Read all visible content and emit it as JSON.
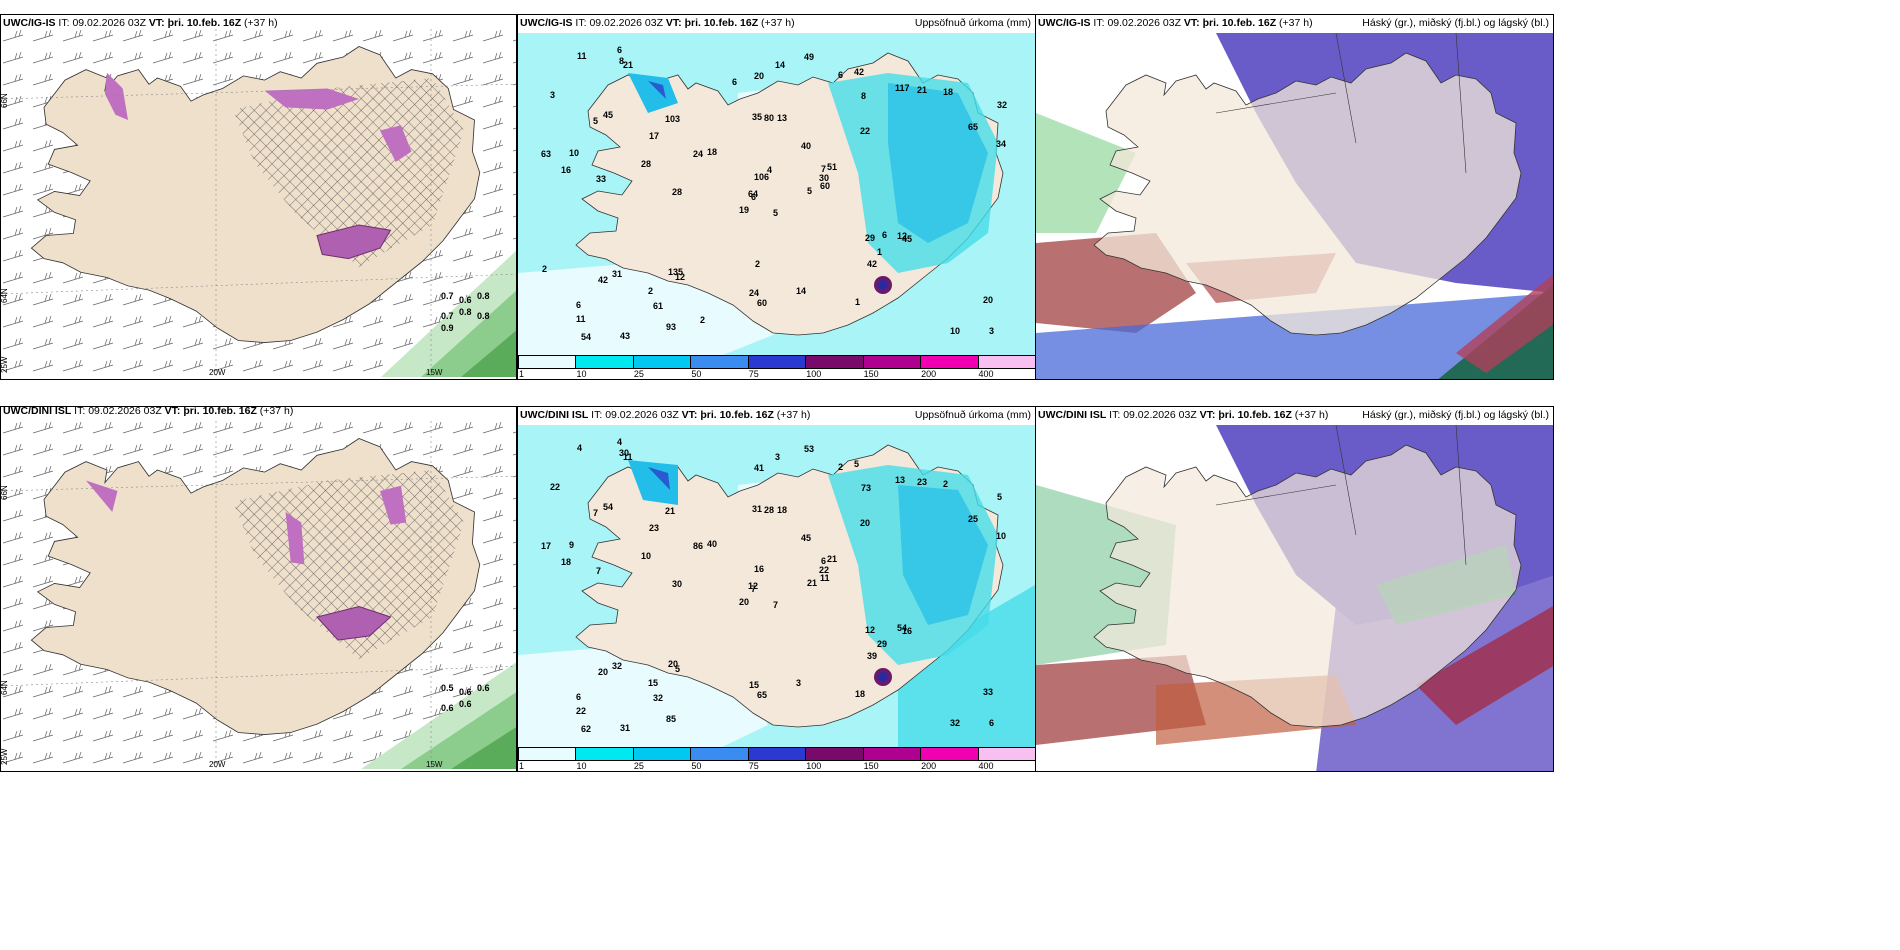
{
  "panels": [
    {
      "model": "UWC/IG-IS",
      "it": "09.02.2026 03Z",
      "vt": "þri. 10.feb. 16Z",
      "lead": "(+37 h)",
      "right": ""
    },
    {
      "model": "UWC/IG-IS",
      "it": "09.02.2026 03Z",
      "vt": "þri. 10.feb. 16Z",
      "lead": "(+37 h)",
      "right": "Uppsöfnuð úrkoma (mm)"
    },
    {
      "model": "UWC/IG-IS",
      "it": "09.02.2026 03Z",
      "vt": "þri. 10.feb. 16Z",
      "lead": "(+37 h)",
      "right": "Háský (gr.), miðský (fj.bl.) og lágský (bl.)"
    },
    {
      "model": "UWC/DINI ISL",
      "it": "09.02.2026 03Z",
      "vt": "þri. 10.feb. 16Z",
      "lead": "(+37 h)",
      "right": ""
    },
    {
      "model": "UWC/DINI ISL",
      "it": "09.02.2026 03Z",
      "vt": "þri. 10.feb. 16Z",
      "lead": "(+37 h)",
      "right": "Uppsöfnuð úrkoma (mm)"
    },
    {
      "model": "UWC/DINI ISL",
      "it": "09.02.2026 03Z",
      "vt": "þri. 10.feb. 16Z",
      "lead": "(+37 h)",
      "right": "Háský (gr.), miðský (fj.bl.) og lágský (bl.)"
    }
  ],
  "labels": {
    "it": "IT:",
    "vt": "VT:"
  },
  "grid_labels": {
    "lat66": "66N",
    "lat64": "64N",
    "lat25w": "25W",
    "lon20w": "20W",
    "lon15w": "15W"
  },
  "colorbar": {
    "ticks": [
      "1",
      "10",
      "25",
      "50",
      "75",
      "100",
      "150",
      "200",
      "400"
    ],
    "colors": [
      "#e8fbff",
      "#00e8f0",
      "#00c8f0",
      "#3a8cf0",
      "#2a3ad0",
      "#7a0a6a",
      "#b00090",
      "#f000b0",
      "#f8c0f0"
    ]
  },
  "precip_ig": [
    "5",
    "5",
    "6",
    "6",
    "7",
    "12",
    "42",
    "13",
    "8",
    "5",
    "21",
    "3",
    "33",
    "32",
    "19",
    "22",
    "43",
    "35",
    "40",
    "31",
    "18",
    "11",
    "61",
    "80",
    "51",
    "45",
    "45",
    "20",
    "16",
    "29",
    "34",
    "64",
    "24",
    "106",
    "103",
    "117",
    "135",
    "10",
    "20",
    "12",
    "49",
    "24",
    "28",
    "42",
    "93",
    "63",
    "30",
    "54",
    "60",
    "60",
    "42",
    "65",
    "3",
    "1",
    "1",
    "2",
    "8",
    "11",
    "14",
    "18",
    "14",
    "28",
    "10",
    "17",
    "21",
    "6",
    "6",
    "6",
    "4",
    "2",
    "2",
    "2",
    "6"
  ],
  "precip_dini": [
    "7",
    "7",
    "7",
    "6",
    "6",
    "5",
    "5",
    "18",
    "73",
    "21",
    "11",
    "6",
    "7",
    "5",
    "20",
    "20",
    "31",
    "31",
    "45",
    "32",
    "40",
    "22",
    "32",
    "28",
    "21",
    "16",
    "54",
    "41",
    "18",
    "12",
    "10",
    "12",
    "15",
    "16",
    "21",
    "13",
    "20",
    "32",
    "33",
    "54",
    "53",
    "86",
    "10",
    "39",
    "85",
    "17",
    "22",
    "62",
    "65",
    "11",
    "20",
    "25",
    "22",
    "29",
    "18",
    "15",
    "30",
    "4",
    "3",
    "2",
    "3",
    "30",
    "9",
    "23",
    "23",
    "4",
    "2"
  ],
  "wind_values_ig": [
    "0.7",
    "0.6",
    "0.8",
    "0.7",
    "0.8",
    "0.8",
    "0.9"
  ],
  "wind_values_dini": [
    "0.5",
    "0.6",
    "0.6",
    "0.6",
    "0.6"
  ]
}
